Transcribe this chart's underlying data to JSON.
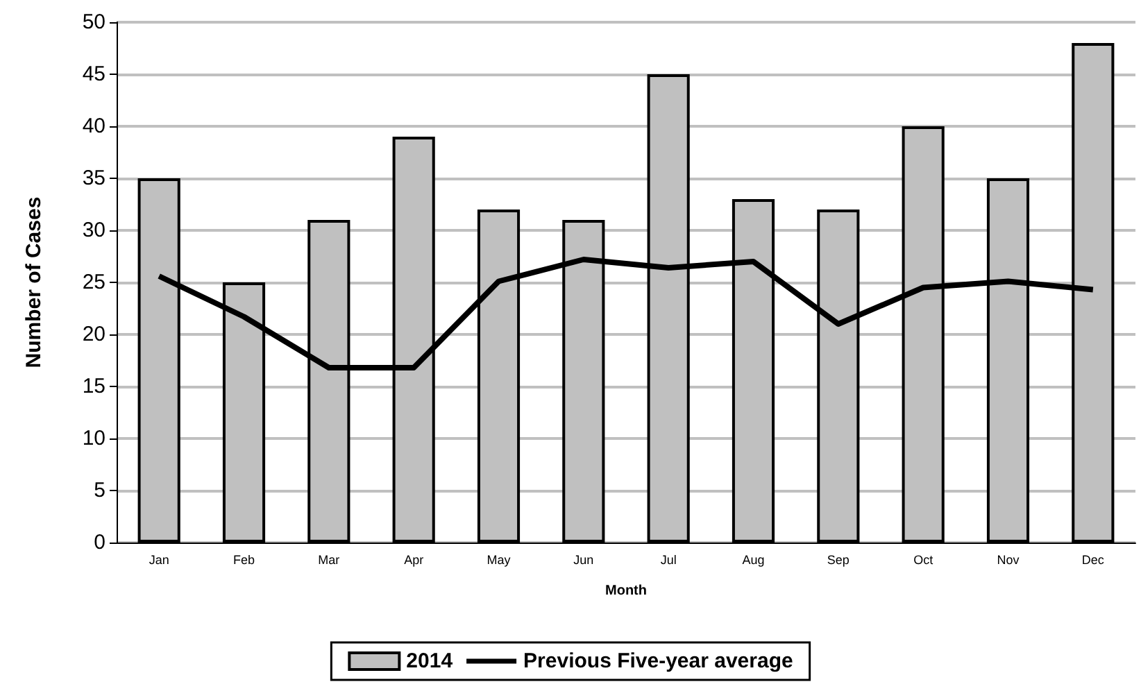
{
  "chart_data": {
    "type": "bar",
    "xlabel": "Month",
    "ylabel": "Number of Cases",
    "categories": [
      "Jan",
      "Feb",
      "Mar",
      "Apr",
      "May",
      "Jun",
      "Jul",
      "Aug",
      "Sep",
      "Oct",
      "Nov",
      "Dec"
    ],
    "series": [
      {
        "name": "2014",
        "color": "#c0c0c0",
        "values": [
          35,
          25,
          31,
          39,
          32,
          31,
          45,
          33,
          32,
          40,
          35,
          48
        ]
      },
      {
        "name": "Previous Five-year average",
        "type": "line",
        "color": "#000000",
        "values": [
          25.6,
          21.7,
          16.8,
          16.8,
          25.1,
          27.2,
          26.4,
          27,
          21,
          24.5,
          25.1,
          24.3
        ]
      }
    ],
    "ylim": [
      0,
      50
    ],
    "yticks": [
      0,
      5,
      10,
      15,
      20,
      25,
      30,
      35,
      40,
      45,
      50
    ],
    "grid": "y",
    "legend": "bottom",
    "marker": "none"
  }
}
